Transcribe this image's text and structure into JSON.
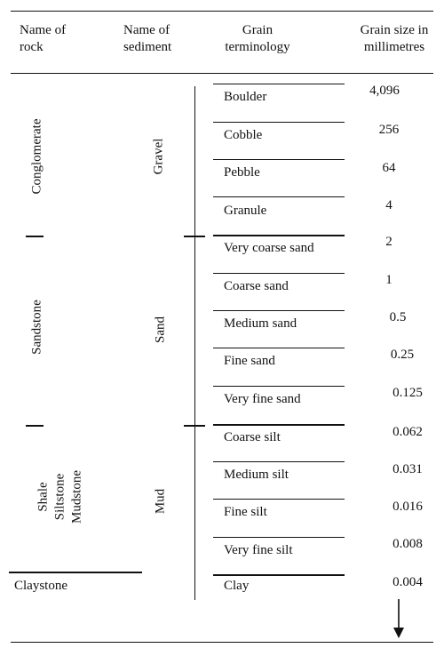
{
  "headers": {
    "rock": [
      "Name of",
      "rock"
    ],
    "sediment": [
      "Name of",
      "sediment"
    ],
    "grain": [
      "Grain",
      "terminology"
    ],
    "size": [
      "Grain size in",
      "millimetres"
    ]
  },
  "rocks": {
    "conglomerate": "Conglomerate",
    "sandstone": "Sandstone",
    "shale": "Shale",
    "siltstone": "Siltstone",
    "mudstone": "Mudstone",
    "claystone": "Claystone"
  },
  "sediments": {
    "gravel": "Gravel",
    "sand": "Sand",
    "mud": "Mud"
  },
  "terms": [
    "Boulder",
    "Cobble",
    "Pebble",
    "Granule",
    "Very coarse sand",
    "Coarse sand",
    "Medium sand",
    "Fine sand",
    "Very fine sand",
    "Coarse silt",
    "Medium silt",
    "Fine silt",
    "Very fine silt",
    "Clay"
  ],
  "sizes": [
    "4,096",
    "256",
    "64",
    "4",
    "2",
    "1",
    "0.5",
    "0.25",
    "0.125",
    "0.062",
    "0.031",
    "0.016",
    "0.008",
    "0.004"
  ]
}
